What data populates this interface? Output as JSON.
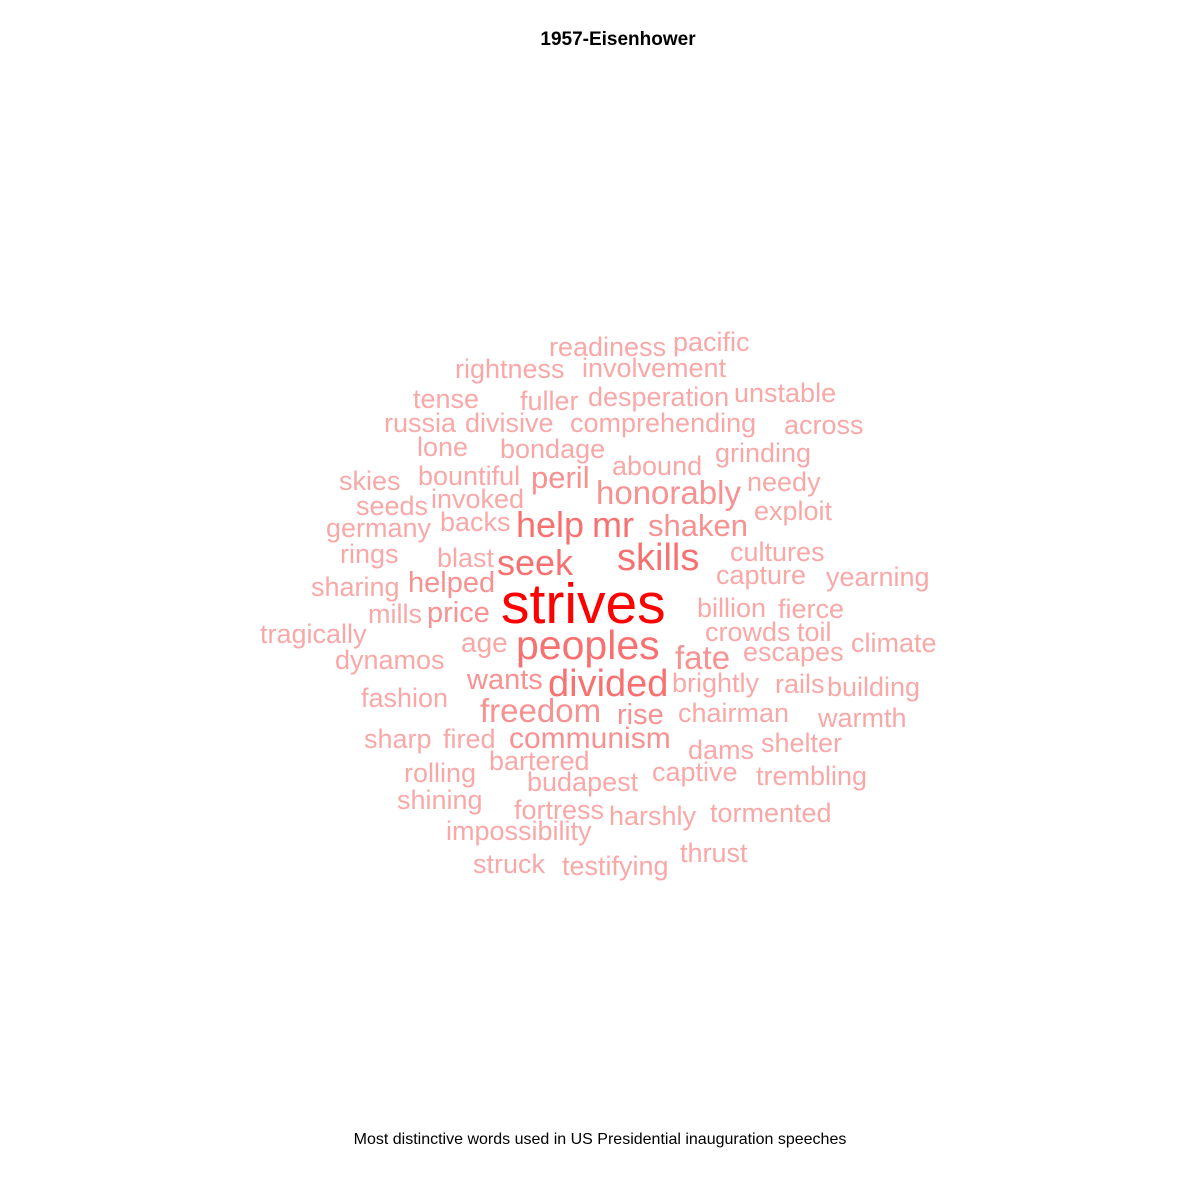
{
  "title": "1957-Eisenhower",
  "caption": "Most distinctive words used in US Presidential inauguration speeches",
  "chart_data": {
    "type": "wordcloud",
    "title": "1957-Eisenhower",
    "caption": "Most distinctive words used in US Presidential inauguration speeches",
    "colors": {
      "highest": "#ff0000",
      "high": "#f87171",
      "mid": "#f89191",
      "low": "#f9a8a8"
    },
    "words": [
      {
        "word": "strives",
        "weight": 1.0
      },
      {
        "word": "peoples",
        "weight": 0.62
      },
      {
        "word": "divided",
        "weight": 0.55
      },
      {
        "word": "skills",
        "weight": 0.55
      },
      {
        "word": "seek",
        "weight": 0.5
      },
      {
        "word": "help",
        "weight": 0.5
      },
      {
        "word": "mr",
        "weight": 0.5
      },
      {
        "word": "freedom",
        "weight": 0.42
      },
      {
        "word": "honorably",
        "weight": 0.42
      },
      {
        "word": "fate",
        "weight": 0.42
      },
      {
        "word": "peril",
        "weight": 0.38
      },
      {
        "word": "shaken",
        "weight": 0.38
      },
      {
        "word": "communism",
        "weight": 0.36
      },
      {
        "word": "helped",
        "weight": 0.34
      },
      {
        "word": "price",
        "weight": 0.34
      },
      {
        "word": "wants",
        "weight": 0.34
      },
      {
        "word": "rise",
        "weight": 0.34
      },
      {
        "word": "age",
        "weight": 0.3
      },
      {
        "word": "readiness",
        "weight": 0.28
      },
      {
        "word": "pacific",
        "weight": 0.28
      },
      {
        "word": "rightness",
        "weight": 0.28
      },
      {
        "word": "involvement",
        "weight": 0.28
      },
      {
        "word": "tense",
        "weight": 0.28
      },
      {
        "word": "fuller",
        "weight": 0.28
      },
      {
        "word": "desperation",
        "weight": 0.28
      },
      {
        "word": "unstable",
        "weight": 0.28
      },
      {
        "word": "russia",
        "weight": 0.28
      },
      {
        "word": "divisive",
        "weight": 0.28
      },
      {
        "word": "comprehending",
        "weight": 0.28
      },
      {
        "word": "across",
        "weight": 0.28
      },
      {
        "word": "lone",
        "weight": 0.28
      },
      {
        "word": "bondage",
        "weight": 0.28
      },
      {
        "word": "grinding",
        "weight": 0.28
      },
      {
        "word": "skies",
        "weight": 0.28
      },
      {
        "word": "bountiful",
        "weight": 0.28
      },
      {
        "word": "abound",
        "weight": 0.28
      },
      {
        "word": "needy",
        "weight": 0.28
      },
      {
        "word": "seeds",
        "weight": 0.28
      },
      {
        "word": "invoked",
        "weight": 0.28
      },
      {
        "word": "exploit",
        "weight": 0.28
      },
      {
        "word": "germany",
        "weight": 0.28
      },
      {
        "word": "backs",
        "weight": 0.28
      },
      {
        "word": "rings",
        "weight": 0.28
      },
      {
        "word": "blast",
        "weight": 0.28
      },
      {
        "word": "cultures",
        "weight": 0.28
      },
      {
        "word": "sharing",
        "weight": 0.28
      },
      {
        "word": "capture",
        "weight": 0.28
      },
      {
        "word": "yearning",
        "weight": 0.28
      },
      {
        "word": "mills",
        "weight": 0.28
      },
      {
        "word": "billion",
        "weight": 0.28
      },
      {
        "word": "fierce",
        "weight": 0.28
      },
      {
        "word": "tragically",
        "weight": 0.28
      },
      {
        "word": "crowds",
        "weight": 0.28
      },
      {
        "word": "toil",
        "weight": 0.28
      },
      {
        "word": "climate",
        "weight": 0.28
      },
      {
        "word": "dynamos",
        "weight": 0.28
      },
      {
        "word": "escapes",
        "weight": 0.28
      },
      {
        "word": "brightly",
        "weight": 0.28
      },
      {
        "word": "rails",
        "weight": 0.28
      },
      {
        "word": "building",
        "weight": 0.28
      },
      {
        "word": "fashion",
        "weight": 0.28
      },
      {
        "word": "chairman",
        "weight": 0.28
      },
      {
        "word": "warmth",
        "weight": 0.28
      },
      {
        "word": "sharp",
        "weight": 0.28
      },
      {
        "word": "fired",
        "weight": 0.28
      },
      {
        "word": "dams",
        "weight": 0.28
      },
      {
        "word": "shelter",
        "weight": 0.28
      },
      {
        "word": "rolling",
        "weight": 0.28
      },
      {
        "word": "bartered",
        "weight": 0.28
      },
      {
        "word": "captive",
        "weight": 0.28
      },
      {
        "word": "trembling",
        "weight": 0.28
      },
      {
        "word": "budapest",
        "weight": 0.28
      },
      {
        "word": "shining",
        "weight": 0.28
      },
      {
        "word": "fortress",
        "weight": 0.28
      },
      {
        "word": "harshly",
        "weight": 0.28
      },
      {
        "word": "tormented",
        "weight": 0.28
      },
      {
        "word": "impossibility",
        "weight": 0.28
      },
      {
        "word": "thrust",
        "weight": 0.28
      },
      {
        "word": "struck",
        "weight": 0.28
      },
      {
        "word": "testifying",
        "weight": 0.28
      }
    ]
  }
}
